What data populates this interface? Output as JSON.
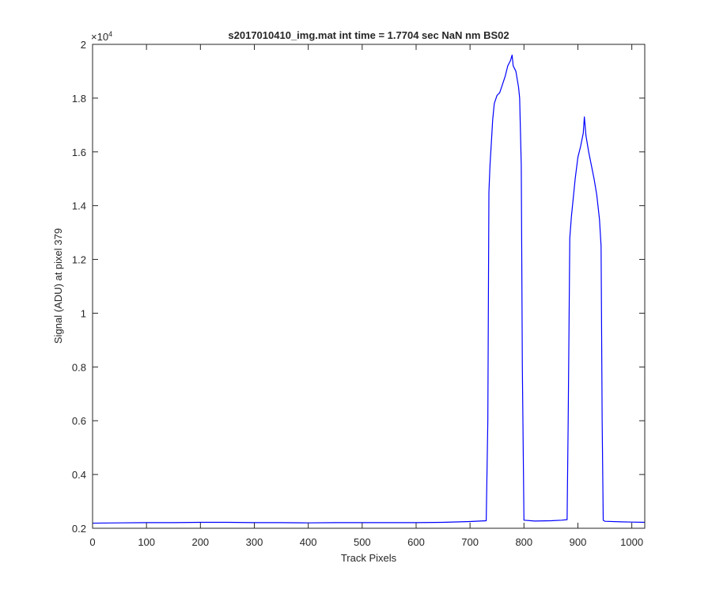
{
  "chart_data": {
    "type": "line",
    "title": "s2017010410_img.mat int time = 1.7704 sec  NaN nm BS02",
    "xlabel": "Track Pixels",
    "ylabel": "Signal (ADU) at pixel 379",
    "y_exponent_label": "×10",
    "y_exponent_power": "4",
    "xlim": [
      0,
      1024
    ],
    "ylim": [
      0.2,
      2.0
    ],
    "y_scale_factor": 10000,
    "x_ticks": [
      0,
      100,
      200,
      300,
      400,
      500,
      600,
      700,
      800,
      900,
      1000
    ],
    "x_tick_labels": [
      "0",
      "100",
      "200",
      "300",
      "400",
      "500",
      "600",
      "700",
      "800",
      "900",
      "1000"
    ],
    "y_ticks": [
      0.2,
      0.4,
      0.6,
      0.8,
      1.0,
      1.2,
      1.4,
      1.6,
      1.8,
      2.0
    ],
    "y_tick_labels": [
      "0.2",
      "0.4",
      "0.6",
      "0.8",
      "1",
      "1.2",
      "1.4",
      "1.6",
      "1.8",
      "2"
    ],
    "grid": false,
    "line_color": "#0000ff",
    "series": [
      {
        "x": [
          0,
          50,
          100,
          150,
          200,
          250,
          300,
          350,
          400,
          450,
          500,
          550,
          600,
          650,
          700,
          730,
          733,
          735,
          737,
          740,
          742,
          745,
          750,
          755,
          760,
          765,
          770,
          775,
          778,
          780,
          785,
          790,
          792,
          795,
          797,
          800,
          820,
          850,
          870,
          880,
          882,
          885,
          888,
          890,
          895,
          900,
          905,
          910,
          912,
          915,
          920,
          925,
          930,
          935,
          940,
          943,
          945,
          947,
          950,
          980,
          1000,
          1024
        ],
        "y": [
          0.219,
          0.22,
          0.221,
          0.221,
          0.222,
          0.222,
          0.221,
          0.221,
          0.22,
          0.221,
          0.221,
          0.221,
          0.221,
          0.222,
          0.225,
          0.228,
          0.6,
          1.45,
          1.55,
          1.65,
          1.72,
          1.78,
          1.81,
          1.82,
          1.85,
          1.88,
          1.92,
          1.94,
          1.96,
          1.92,
          1.9,
          1.84,
          1.8,
          1.55,
          0.8,
          0.23,
          0.227,
          0.228,
          0.23,
          0.232,
          0.6,
          1.28,
          1.36,
          1.4,
          1.5,
          1.58,
          1.62,
          1.67,
          1.73,
          1.66,
          1.6,
          1.55,
          1.5,
          1.44,
          1.35,
          1.25,
          0.6,
          0.23,
          0.226,
          0.224,
          0.223,
          0.222
        ]
      }
    ]
  }
}
